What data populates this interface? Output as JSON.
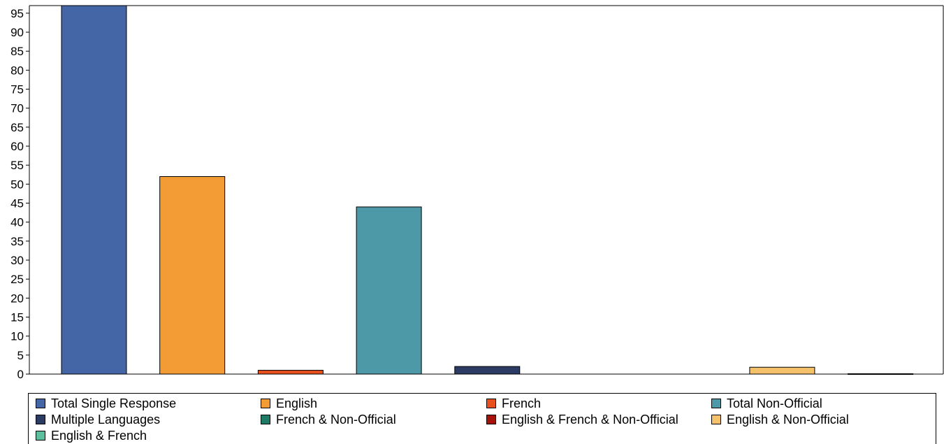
{
  "chart_data": {
    "type": "bar",
    "categories": [
      "Total Single Response",
      "English",
      "French",
      "Total Non-Official",
      "Multiple Languages",
      "French & Non-Official",
      "English & French & Non-Official",
      "English & Non-Official",
      "English & French"
    ],
    "values": [
      98,
      52,
      1,
      44,
      2,
      0,
      0,
      1.8,
      0.1
    ],
    "colors": [
      "#4466a6",
      "#f39c35",
      "#e8501e",
      "#4e99a8",
      "#2b3b63",
      "#1f7a66",
      "#a6130c",
      "#f5c26b",
      "#5dbf9e"
    ],
    "yticks": [
      0,
      5,
      10,
      15,
      20,
      25,
      30,
      35,
      40,
      45,
      50,
      55,
      60,
      65,
      70,
      75,
      80,
      85,
      90,
      95
    ],
    "ylim": [
      0,
      97
    ],
    "xlabel": "",
    "ylabel": "",
    "grid": false,
    "legend_position": "bottom"
  }
}
